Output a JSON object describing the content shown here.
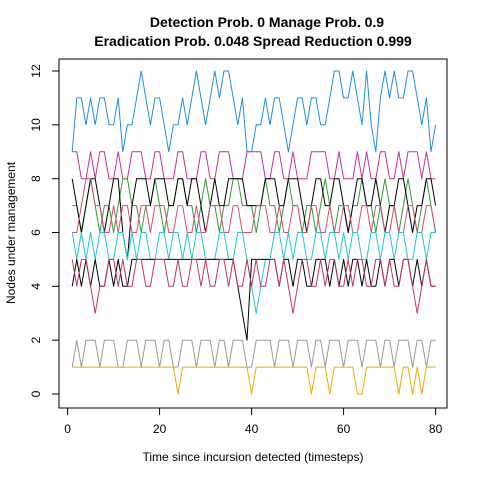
{
  "chart_data": {
    "type": "line",
    "title": "Detection Prob. 0 Manage Prob. 0.9",
    "subtitle": "Eradication Prob. 0.048 Spread Reduction 0.999",
    "xlabel": "Time since incursion detected (timesteps)",
    "ylabel": "Nodes under management",
    "xlim": [
      1,
      80
    ],
    "ylim": [
      0,
      12
    ],
    "x_ticks": [
      0,
      20,
      40,
      60,
      80
    ],
    "y_ticks": [
      0,
      2,
      4,
      6,
      8,
      10,
      12
    ],
    "grid": false,
    "legend": "none",
    "series": [
      {
        "color": "#1f8fd6",
        "values": [
          9,
          11,
          11,
          10,
          11,
          10,
          11,
          11,
          10,
          10,
          11,
          9,
          10,
          10,
          11,
          12,
          11,
          10,
          11,
          11,
          10,
          9,
          10,
          10,
          11,
          10,
          11,
          12,
          11,
          10,
          11,
          12,
          11,
          12,
          12,
          11,
          10,
          11,
          9,
          9,
          10,
          10,
          11,
          10,
          11,
          11,
          10,
          9,
          10,
          11,
          11,
          10,
          11,
          11,
          10,
          10,
          11,
          12,
          12,
          11,
          11,
          12,
          11,
          10,
          12,
          10,
          9,
          11,
          12,
          11,
          12,
          11,
          11,
          12,
          12,
          11,
          10,
          11,
          9,
          10
        ]
      },
      {
        "color": "#c0309a",
        "values": [
          9,
          9,
          8,
          8,
          9,
          8,
          9,
          9,
          8,
          8,
          9,
          8,
          8,
          9,
          9,
          9,
          8,
          8,
          9,
          9,
          8,
          8,
          8,
          9,
          9,
          8,
          8,
          8,
          9,
          9,
          8,
          8,
          9,
          9,
          9,
          8,
          8,
          8,
          9,
          9,
          9,
          9,
          8,
          8,
          9,
          9,
          8,
          8,
          9,
          8,
          8,
          8,
          9,
          9,
          9,
          9,
          8,
          8,
          9,
          8,
          8,
          8,
          9,
          8,
          9,
          8,
          8,
          9,
          9,
          8,
          8,
          9,
          8,
          9,
          9,
          9,
          8,
          9,
          8,
          8
        ]
      },
      {
        "color": "#2e9f2e",
        "values": [
          7,
          7,
          6,
          7,
          8,
          7,
          6,
          7,
          7,
          6,
          7,
          8,
          8,
          7,
          7,
          6,
          7,
          7,
          8,
          7,
          6,
          7,
          7,
          8,
          8,
          7,
          7,
          6,
          7,
          8,
          7,
          7,
          6,
          7,
          7,
          8,
          8,
          7,
          7,
          7,
          6,
          7,
          8,
          7,
          7,
          6,
          7,
          8,
          7,
          7,
          6,
          7,
          7,
          6,
          7,
          8,
          7,
          6,
          7,
          7,
          6,
          7,
          7,
          8,
          7,
          7,
          6,
          7,
          8,
          7,
          7,
          6,
          7,
          8,
          7,
          6,
          7,
          8,
          7,
          6
        ]
      },
      {
        "color": "#000000",
        "values": [
          8,
          7,
          6,
          7,
          8,
          8,
          7,
          6,
          7,
          8,
          8,
          6,
          5,
          7,
          8,
          8,
          8,
          7,
          8,
          8,
          8,
          7,
          7,
          8,
          8,
          7,
          8,
          8,
          7,
          6,
          7,
          8,
          7,
          7,
          8,
          8,
          8,
          8,
          7,
          7,
          7,
          7,
          8,
          8,
          8,
          7,
          7,
          8,
          8,
          8,
          7,
          6,
          7,
          8,
          8,
          7,
          7,
          8,
          8,
          7,
          6,
          7,
          8,
          8,
          7,
          7,
          8,
          7,
          6,
          7,
          7,
          8,
          8,
          7,
          6,
          7,
          7,
          8,
          8,
          7
        ]
      },
      {
        "color": "#d4506a",
        "values": [
          6,
          6,
          7,
          8,
          8,
          7,
          7,
          6,
          6,
          7,
          6,
          7,
          7,
          6,
          6,
          7,
          7,
          6,
          7,
          7,
          7,
          6,
          6,
          7,
          7,
          6,
          6,
          7,
          6,
          6,
          7,
          7,
          7,
          6,
          6,
          7,
          7,
          6,
          6,
          6,
          7,
          7,
          7,
          6,
          6,
          7,
          6,
          6,
          7,
          7,
          6,
          6,
          7,
          7,
          6,
          6,
          7,
          6,
          6,
          7,
          7,
          6,
          6,
          7,
          7,
          6,
          7,
          7,
          6,
          6,
          7,
          6,
          6,
          7,
          7,
          6,
          6,
          7,
          7,
          6
        ]
      },
      {
        "color": "#1ec8d8",
        "values": [
          6,
          5,
          6,
          5,
          6,
          5,
          6,
          6,
          5,
          5,
          6,
          6,
          5,
          6,
          5,
          6,
          6,
          5,
          5,
          6,
          6,
          5,
          6,
          6,
          5,
          6,
          5,
          6,
          6,
          5,
          5,
          5,
          6,
          6,
          5,
          5,
          6,
          6,
          5,
          4,
          3,
          4,
          5,
          5,
          6,
          6,
          5,
          6,
          5,
          6,
          6,
          5,
          5,
          6,
          6,
          5,
          6,
          6,
          5,
          6,
          5,
          6,
          6,
          5,
          5,
          6,
          6,
          5,
          6,
          6,
          5,
          6,
          6,
          5,
          5,
          6,
          6,
          5,
          6,
          6
        ]
      },
      {
        "color": "#000000",
        "values": [
          4,
          5,
          4,
          5,
          4,
          5,
          4,
          4,
          5,
          4,
          5,
          4,
          4,
          5,
          5,
          5,
          5,
          5,
          5,
          5,
          5,
          5,
          5,
          5,
          5,
          5,
          5,
          5,
          5,
          5,
          5,
          5,
          5,
          5,
          5,
          5,
          4,
          3,
          2,
          5,
          5,
          5,
          5,
          5,
          5,
          4,
          5,
          5,
          4,
          5,
          5,
          4,
          4,
          5,
          5,
          5,
          4,
          5,
          4,
          5,
          4,
          5,
          5,
          4,
          5,
          4,
          4,
          5,
          4,
          5,
          5,
          4,
          5,
          5,
          4,
          5,
          4,
          5,
          4,
          4
        ]
      },
      {
        "color": "#c03560",
        "values": [
          5,
          4,
          5,
          5,
          4,
          3,
          4,
          4,
          5,
          5,
          4,
          5,
          4,
          4,
          5,
          5,
          4,
          4,
          5,
          5,
          5,
          4,
          4,
          5,
          4,
          4,
          5,
          5,
          4,
          5,
          4,
          4,
          5,
          5,
          4,
          5,
          4,
          4,
          5,
          4,
          5,
          4,
          4,
          5,
          5,
          4,
          5,
          4,
          3,
          4,
          5,
          5,
          4,
          4,
          5,
          4,
          5,
          5,
          4,
          4,
          5,
          4,
          5,
          5,
          4,
          4,
          5,
          5,
          4,
          5,
          4,
          4,
          5,
          5,
          4,
          3,
          4,
          5,
          4,
          4
        ]
      },
      {
        "color": "#999999",
        "values": [
          1,
          2,
          1,
          2,
          2,
          2,
          1,
          2,
          2,
          2,
          1,
          1,
          2,
          2,
          2,
          1,
          2,
          2,
          2,
          1,
          2,
          2,
          1,
          1,
          2,
          2,
          2,
          1,
          2,
          2,
          2,
          1,
          2,
          2,
          1,
          2,
          2,
          2,
          1,
          1,
          2,
          2,
          2,
          2,
          1,
          2,
          2,
          2,
          1,
          2,
          2,
          2,
          1,
          2,
          2,
          1,
          2,
          2,
          2,
          1,
          2,
          2,
          2,
          1,
          2,
          2,
          2,
          1,
          2,
          2,
          1,
          2,
          2,
          2,
          1,
          2,
          2,
          1,
          2,
          2
        ]
      },
      {
        "color": "#e6ac00",
        "values": [
          1,
          1,
          1,
          1,
          1,
          1,
          1,
          1,
          1,
          1,
          1,
          1,
          1,
          1,
          1,
          1,
          1,
          1,
          1,
          1,
          1,
          1,
          1,
          0,
          1,
          1,
          1,
          1,
          1,
          1,
          1,
          1,
          1,
          1,
          1,
          1,
          1,
          1,
          1,
          0,
          1,
          1,
          1,
          1,
          1,
          1,
          1,
          1,
          1,
          1,
          1,
          1,
          0,
          1,
          1,
          1,
          0,
          1,
          1,
          1,
          1,
          1,
          0,
          0,
          1,
          1,
          1,
          1,
          1,
          1,
          1,
          0,
          1,
          1,
          0,
          1,
          0,
          1,
          1,
          1
        ]
      }
    ]
  }
}
